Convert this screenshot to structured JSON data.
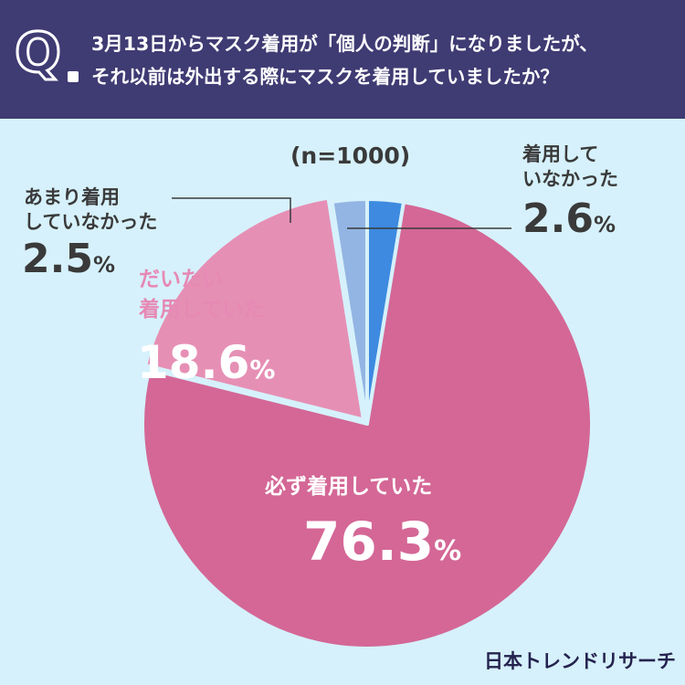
{
  "question": {
    "mark": "Q",
    "line1": "3月13日からマスク着用が「個人の判断」になりましたが、",
    "line2": "それ以前は外出する際にマスクを着用していましたか？"
  },
  "n_label": "(n=1000)",
  "brand": "日本トレンドリサーチ",
  "colors": {
    "header": "#3f3b73",
    "background": "#d6f1fb",
    "always": "#d46796",
    "mostly": "#e68fb5",
    "rarely": "#93b5e3",
    "never": "#3d8ae0"
  },
  "chart_data": {
    "type": "pie",
    "start": "12 o'clock",
    "direction": "clockwise",
    "slices": [
      {
        "label_lines": [
          "着用して",
          "いなかった"
        ],
        "value": 2.6,
        "display": "2.6",
        "color": "#3d8ae0"
      },
      {
        "label_lines": [
          "必ず着用していた"
        ],
        "value": 76.3,
        "display": "76.3",
        "color": "#d46796"
      },
      {
        "label_lines": [
          "だいたい",
          "着用していた"
        ],
        "value": 18.6,
        "display": "18.6",
        "color": "#e68fb5"
      },
      {
        "label_lines": [
          "あまり着用",
          "していなかった"
        ],
        "value": 2.5,
        "display": "2.5",
        "color": "#93b5e3"
      }
    ],
    "unit": "%"
  }
}
